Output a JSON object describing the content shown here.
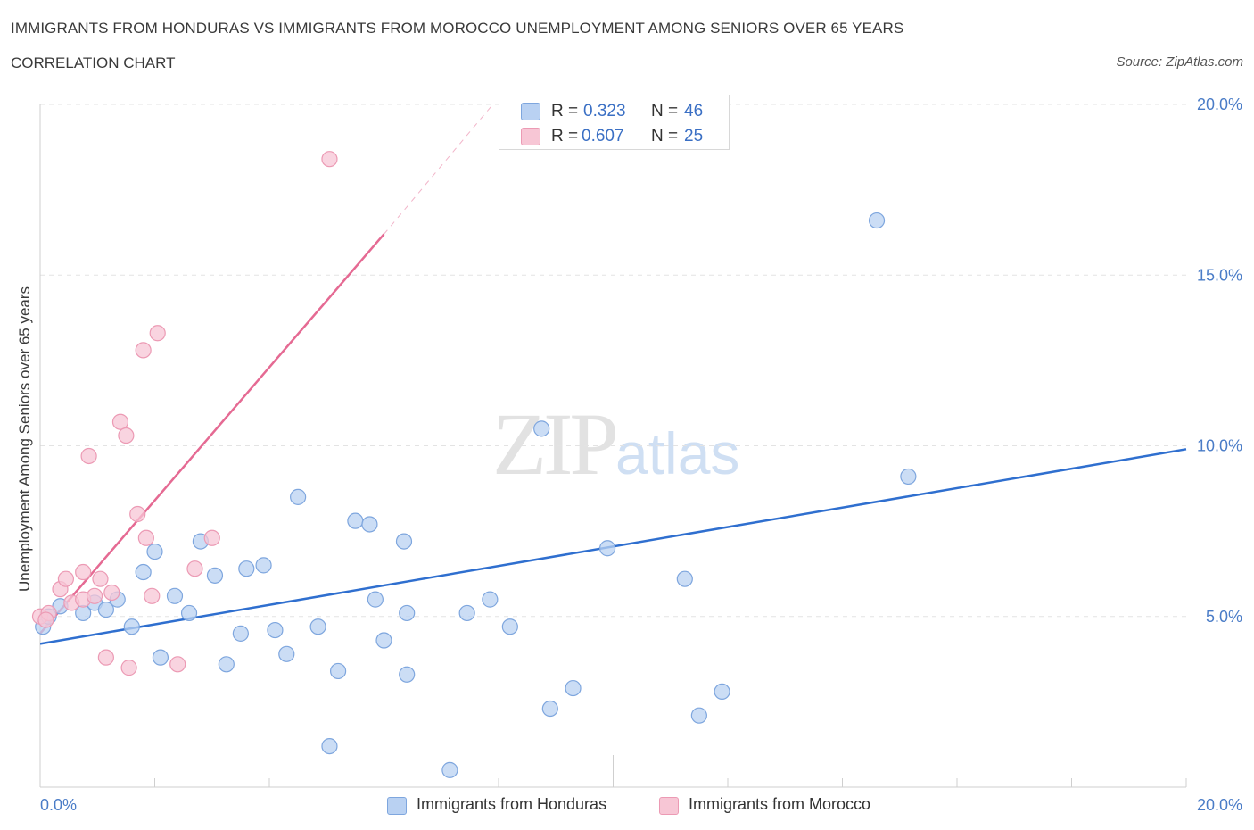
{
  "header": {
    "title": "IMMIGRANTS FROM HONDURAS VS IMMIGRANTS FROM MOROCCO UNEMPLOYMENT AMONG SENIORS OVER 65 YEARS",
    "subtitle": "CORRELATION CHART",
    "source": "Source: ZipAtlas.com"
  },
  "watermark": {
    "zip": "ZIP",
    "atlas": "atlas"
  },
  "legend": {
    "rows": [
      {
        "r_label": "R =",
        "r_value": "0.323",
        "n_label": "N =",
        "n_value": "46"
      },
      {
        "r_label": "R =",
        "r_value": "0.607",
        "n_label": "N =",
        "n_value": "25"
      }
    ]
  },
  "bottom_legend": {
    "honduras": "Immigrants from Honduras",
    "morocco": "Immigrants from Morocco"
  },
  "colors": {
    "honduras_fill": "#b9d1f2",
    "honduras_stroke": "#7ea6de",
    "honduras_line": "#2f6fcf",
    "morocco_fill": "#f7c6d5",
    "morocco_stroke": "#ec9ab4",
    "morocco_line": "#e56a93",
    "tick_text": "#4a7cc7"
  },
  "chart_data": {
    "type": "scatter",
    "xlabel": "",
    "ylabel": "Unemployment Among Seniors over 65 years",
    "xlim": [
      0,
      20
    ],
    "ylim": [
      0,
      20
    ],
    "x_tick_labels": [
      "0.0%",
      "20.0%"
    ],
    "y_tick_labels": [
      "5.0%",
      "10.0%",
      "15.0%",
      "20.0%"
    ],
    "y_ticks": [
      5,
      10,
      15,
      20
    ],
    "grid": true,
    "legend_position": "top-center",
    "series": [
      {
        "name": "Immigrants from Honduras",
        "points": [
          [
            0.05,
            4.7
          ],
          [
            0.15,
            5.0
          ],
          [
            0.35,
            5.3
          ],
          [
            0.75,
            5.1
          ],
          [
            0.95,
            5.4
          ],
          [
            1.15,
            5.2
          ],
          [
            1.35,
            5.5
          ],
          [
            1.6,
            4.7
          ],
          [
            1.8,
            6.3
          ],
          [
            2.0,
            6.9
          ],
          [
            2.1,
            3.8
          ],
          [
            2.35,
            5.6
          ],
          [
            2.6,
            5.1
          ],
          [
            2.8,
            7.2
          ],
          [
            3.05,
            6.2
          ],
          [
            3.25,
            3.6
          ],
          [
            3.5,
            4.5
          ],
          [
            3.6,
            6.4
          ],
          [
            3.9,
            6.5
          ],
          [
            4.1,
            4.6
          ],
          [
            4.3,
            3.9
          ],
          [
            4.5,
            8.5
          ],
          [
            4.85,
            4.7
          ],
          [
            5.05,
            1.2
          ],
          [
            5.2,
            3.4
          ],
          [
            5.5,
            7.8
          ],
          [
            5.75,
            7.7
          ],
          [
            5.85,
            5.5
          ],
          [
            6.0,
            4.3
          ],
          [
            6.35,
            7.2
          ],
          [
            6.4,
            5.1
          ],
          [
            6.4,
            3.3
          ],
          [
            7.15,
            0.5
          ],
          [
            7.45,
            5.1
          ],
          [
            7.85,
            5.5
          ],
          [
            8.2,
            4.7
          ],
          [
            8.75,
            10.5
          ],
          [
            8.9,
            2.3
          ],
          [
            9.3,
            2.9
          ],
          [
            9.9,
            7.0
          ],
          [
            10.6,
            19.9
          ],
          [
            11.25,
            6.1
          ],
          [
            11.5,
            2.1
          ],
          [
            11.9,
            2.8
          ],
          [
            14.6,
            16.6
          ],
          [
            15.15,
            9.1
          ]
        ],
        "trend": {
          "x": [
            0,
            20
          ],
          "y": [
            4.2,
            9.9
          ]
        }
      },
      {
        "name": "Immigrants from Morocco",
        "points": [
          [
            0.0,
            5.0
          ],
          [
            0.15,
            5.1
          ],
          [
            0.35,
            5.8
          ],
          [
            0.45,
            6.1
          ],
          [
            0.55,
            5.4
          ],
          [
            0.75,
            5.5
          ],
          [
            0.75,
            6.3
          ],
          [
            0.85,
            9.7
          ],
          [
            0.95,
            5.6
          ],
          [
            1.05,
            6.1
          ],
          [
            1.15,
            3.8
          ],
          [
            1.25,
            5.7
          ],
          [
            1.4,
            10.7
          ],
          [
            1.5,
            10.3
          ],
          [
            1.55,
            3.5
          ],
          [
            1.7,
            8.0
          ],
          [
            1.8,
            12.8
          ],
          [
            1.85,
            7.3
          ],
          [
            1.95,
            5.6
          ],
          [
            2.05,
            13.3
          ],
          [
            2.4,
            3.6
          ],
          [
            2.7,
            6.4
          ],
          [
            3.0,
            7.3
          ],
          [
            5.05,
            18.4
          ],
          [
            0.1,
            4.9
          ]
        ],
        "trend": {
          "x": [
            0,
            6.0
          ],
          "y": [
            4.5,
            16.2
          ]
        },
        "trend_dashed": {
          "x": [
            6.0,
            7.9
          ],
          "y": [
            16.2,
            20.0
          ]
        }
      }
    ]
  }
}
